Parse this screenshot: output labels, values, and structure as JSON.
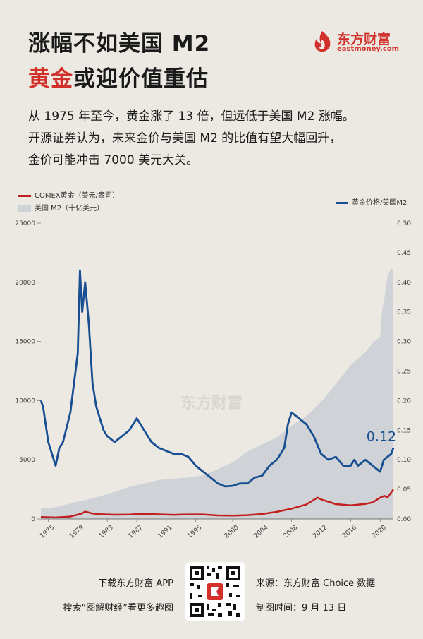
{
  "header": {
    "title_line1": "涨幅不如美国 M2",
    "title_line2_highlight": "黄金",
    "title_line2_rest": "或迎价值重估",
    "highlight_color": "#d1312a"
  },
  "brand": {
    "name_cn": "东方财富",
    "name_en": "eastmoney.com",
    "watermark": "东方财富",
    "logo_icon": "flame-logo-icon",
    "color": "#d1312a"
  },
  "intro": [
    "从 1975 年至今，黄金涨了 13 倍，但远低于美国 M2 涨幅。",
    "开源证券认为，未来金价与美国 M2 的比值有望大幅回升，",
    "金价可能冲击 7000 美元大关。"
  ],
  "chart_data": {
    "type": "line",
    "legend": {
      "gold": "COMEX黄金（美元/盎司）",
      "m2": "美国 M2（十亿美元）",
      "ratio": "黄金价格/美国M2"
    },
    "colors": {
      "gold": "#c21f1f",
      "m2": "#cfd3d8",
      "ratio": "#184e92"
    },
    "x_tick_labels": [
      "1975",
      "1979",
      "1983",
      "1987",
      "1991",
      "1995",
      "2000",
      "2004",
      "2008",
      "2012",
      "2016",
      "2020"
    ],
    "x_range": [
      1974,
      2021.8
    ],
    "y_left": {
      "range": [
        0,
        25000
      ],
      "ticks": [
        0,
        5000,
        10000,
        15000,
        20000,
        25000
      ]
    },
    "y_right": {
      "range": [
        0,
        0.5
      ],
      "ticks": [
        "0.00",
        "0.05",
        "0.10",
        "0.15",
        "0.20",
        "0.25",
        "0.30",
        "0.35",
        "0.40",
        "0.45",
        "0.50"
      ]
    },
    "grid": false,
    "annotation": {
      "text": "0.12",
      "x": 2021.5,
      "y": 0.12
    },
    "m2_series": {
      "x": [
        1974,
        1976,
        1978,
        1980,
        1982,
        1984,
        1986,
        1988,
        1990,
        1992,
        1994,
        1996,
        1998,
        2000,
        2002,
        2004,
        2006,
        2008,
        2010,
        2012,
        2014,
        2016,
        2018,
        2019,
        2020,
        2020.3,
        2020.6,
        2021,
        2021.5,
        2021.8
      ],
      "values": [
        850,
        1000,
        1300,
        1600,
        1900,
        2300,
        2700,
        3000,
        3300,
        3400,
        3500,
        3700,
        4200,
        4800,
        5700,
        6300,
        6900,
        7900,
        8700,
        9900,
        11400,
        13000,
        14100,
        14900,
        15400,
        17800,
        18700,
        20500,
        21200,
        21000
      ]
    },
    "gold_series": {
      "x": [
        1974,
        1976,
        1978,
        1979.5,
        1980,
        1981,
        1982,
        1984,
        1986,
        1988,
        1990,
        1992,
        1994,
        1996,
        1998,
        2000,
        2002,
        2004,
        2006,
        2008,
        2010,
        2011.5,
        2012,
        2014,
        2016,
        2018,
        2019,
        2020,
        2020.6,
        2021,
        2021.8
      ],
      "values": [
        160,
        125,
        200,
        450,
        620,
        460,
        400,
        360,
        370,
        440,
        390,
        350,
        380,
        380,
        300,
        280,
        320,
        420,
        600,
        870,
        1230,
        1800,
        1650,
        1250,
        1150,
        1270,
        1400,
        1800,
        1950,
        1800,
        2500
      ]
    },
    "ratio_series": {
      "x": [
        1974,
        1974.3,
        1975,
        1976,
        1976.5,
        1977,
        1978,
        1979,
        1979.3,
        1979.6,
        1980,
        1980.5,
        1981,
        1981.5,
        1982,
        1982.5,
        1983,
        1984,
        1985,
        1986,
        1987,
        1987.5,
        1988,
        1989,
        1990,
        1991,
        1992,
        1993,
        1994,
        1995,
        1996,
        1997,
        1998,
        1999,
        2000,
        2001,
        2002,
        2003,
        2004,
        2005,
        2006,
        2007,
        2007.5,
        2008,
        2009,
        2010,
        2011,
        2012,
        2013,
        2014,
        2015,
        2016,
        2016.5,
        2017,
        2018,
        2019,
        2020,
        2020.5,
        2021,
        2021.5,
        2021.8
      ],
      "values": [
        0.2,
        0.19,
        0.13,
        0.09,
        0.12,
        0.13,
        0.18,
        0.28,
        0.42,
        0.35,
        0.4,
        0.33,
        0.23,
        0.19,
        0.17,
        0.15,
        0.14,
        0.13,
        0.14,
        0.15,
        0.17,
        0.16,
        0.15,
        0.13,
        0.12,
        0.115,
        0.11,
        0.11,
        0.105,
        0.09,
        0.08,
        0.07,
        0.06,
        0.055,
        0.056,
        0.06,
        0.06,
        0.07,
        0.073,
        0.09,
        0.1,
        0.12,
        0.16,
        0.18,
        0.17,
        0.16,
        0.14,
        0.11,
        0.1,
        0.105,
        0.09,
        0.09,
        0.1,
        0.09,
        0.1,
        0.09,
        0.08,
        0.1,
        0.105,
        0.11,
        0.12
      ]
    }
  },
  "footer": {
    "left_line1": "下载东方财富 APP",
    "left_line2": "搜索“图解财经”看更多趣图",
    "right_line1": "来源：东方财富 Choice 数据",
    "right_line2": "制图时间：9 月 13 日",
    "qr_icon": "qr-code-icon"
  }
}
